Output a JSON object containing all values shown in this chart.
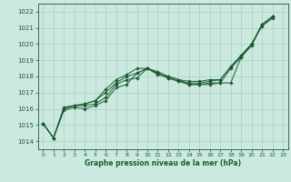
{
  "title": "Graphe pression niveau de la mer (hPa)",
  "bg_color": "#cce9e0",
  "grid_color": "#aacfc6",
  "line_color": "#1a5c30",
  "xlim": [
    -0.5,
    23.5
  ],
  "ylim": [
    1013.5,
    1022.5
  ],
  "xticks": [
    0,
    1,
    2,
    3,
    4,
    5,
    6,
    7,
    8,
    9,
    10,
    11,
    12,
    13,
    14,
    15,
    16,
    17,
    18,
    19,
    20,
    21,
    22,
    23
  ],
  "yticks": [
    1014,
    1015,
    1016,
    1017,
    1018,
    1019,
    1020,
    1021,
    1022
  ],
  "series": [
    {
      "x": [
        0,
        1,
        2,
        3,
        4,
        5,
        6,
        7,
        8,
        9,
        10,
        11,
        12,
        13,
        14,
        15,
        16,
        17,
        18,
        19,
        20,
        21,
        22
      ],
      "y": [
        1015.1,
        1014.2,
        1015.9,
        1016.1,
        1016.0,
        1016.2,
        1016.5,
        1017.3,
        1017.5,
        1018.2,
        1018.5,
        1018.1,
        1018.0,
        1017.8,
        1017.5,
        1017.5,
        1017.5,
        1017.6,
        1017.6,
        1019.2,
        1020.0,
        1021.1,
        1021.6
      ]
    },
    {
      "x": [
        0,
        1,
        2,
        3,
        4,
        5,
        6,
        7,
        8,
        9,
        10,
        11,
        12,
        13,
        14,
        15,
        16,
        17,
        18,
        19,
        20,
        21,
        22
      ],
      "y": [
        1015.1,
        1014.2,
        1016.0,
        1016.2,
        1016.2,
        1016.3,
        1016.7,
        1017.5,
        1017.8,
        1017.9,
        1018.5,
        1018.2,
        1017.9,
        1017.7,
        1017.5,
        1017.5,
        1017.6,
        1017.6,
        1018.5,
        1019.2,
        1019.9,
        1021.2,
        1021.7
      ]
    },
    {
      "x": [
        0,
        1,
        2,
        3,
        4,
        5,
        6,
        7,
        8,
        9,
        10,
        11,
        12,
        13,
        14,
        15,
        16,
        17,
        18,
        19,
        20,
        21,
        22
      ],
      "y": [
        1015.1,
        1014.2,
        1016.1,
        1016.2,
        1016.3,
        1016.5,
        1017.0,
        1017.6,
        1018.0,
        1018.2,
        1018.5,
        1018.2,
        1017.9,
        1017.7,
        1017.6,
        1017.6,
        1017.7,
        1017.8,
        1018.6,
        1019.3,
        1020.0,
        1021.2,
        1021.7
      ]
    },
    {
      "x": [
        0,
        1,
        2,
        3,
        4,
        5,
        6,
        7,
        8,
        9,
        10,
        11,
        12,
        13,
        14,
        15,
        16,
        17,
        18,
        19,
        20,
        21,
        22
      ],
      "y": [
        1015.1,
        1014.2,
        1016.0,
        1016.2,
        1016.3,
        1016.5,
        1017.2,
        1017.8,
        1018.1,
        1018.5,
        1018.5,
        1018.3,
        1018.0,
        1017.8,
        1017.7,
        1017.7,
        1017.8,
        1017.8,
        1018.6,
        1019.3,
        1020.0,
        1021.2,
        1021.7
      ]
    }
  ]
}
